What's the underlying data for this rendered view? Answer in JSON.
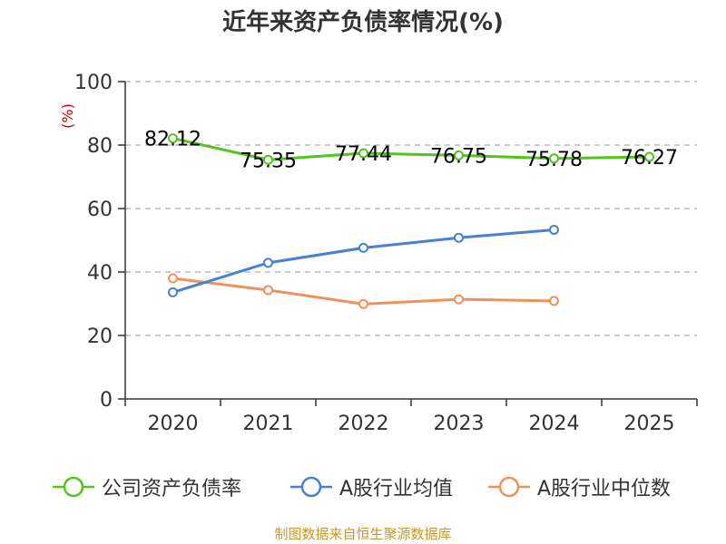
{
  "chart_data": {
    "type": "line",
    "title": "近年来资产负债率情况(%)",
    "ylabel": "(%)",
    "categories": [
      "2020",
      "2021",
      "2022",
      "2023",
      "2024",
      "2025"
    ],
    "ylim": [
      0,
      100
    ],
    "yticks": [
      0,
      20,
      40,
      60,
      80,
      100
    ],
    "grid": true,
    "legend_position": "bottom",
    "series": [
      {
        "name": "公司资产负债率",
        "color": "#52c41a",
        "values": [
          82.12,
          75.35,
          77.44,
          76.75,
          75.78,
          76.27
        ],
        "labels": [
          "82.12",
          "75.35",
          "77.44",
          "76.75",
          "75.78",
          "76.27"
        ]
      },
      {
        "name": "A股行业均值",
        "color": "#4a7fd6",
        "values": [
          33.6,
          42.9,
          47.6,
          50.8,
          53.3,
          null
        ]
      },
      {
        "name": "A股行业中位数",
        "color": "#f0915c",
        "values": [
          38.0,
          34.3,
          29.9,
          31.4,
          30.9,
          null
        ]
      }
    ]
  },
  "source": "制图数据来自恒生聚源数据库"
}
